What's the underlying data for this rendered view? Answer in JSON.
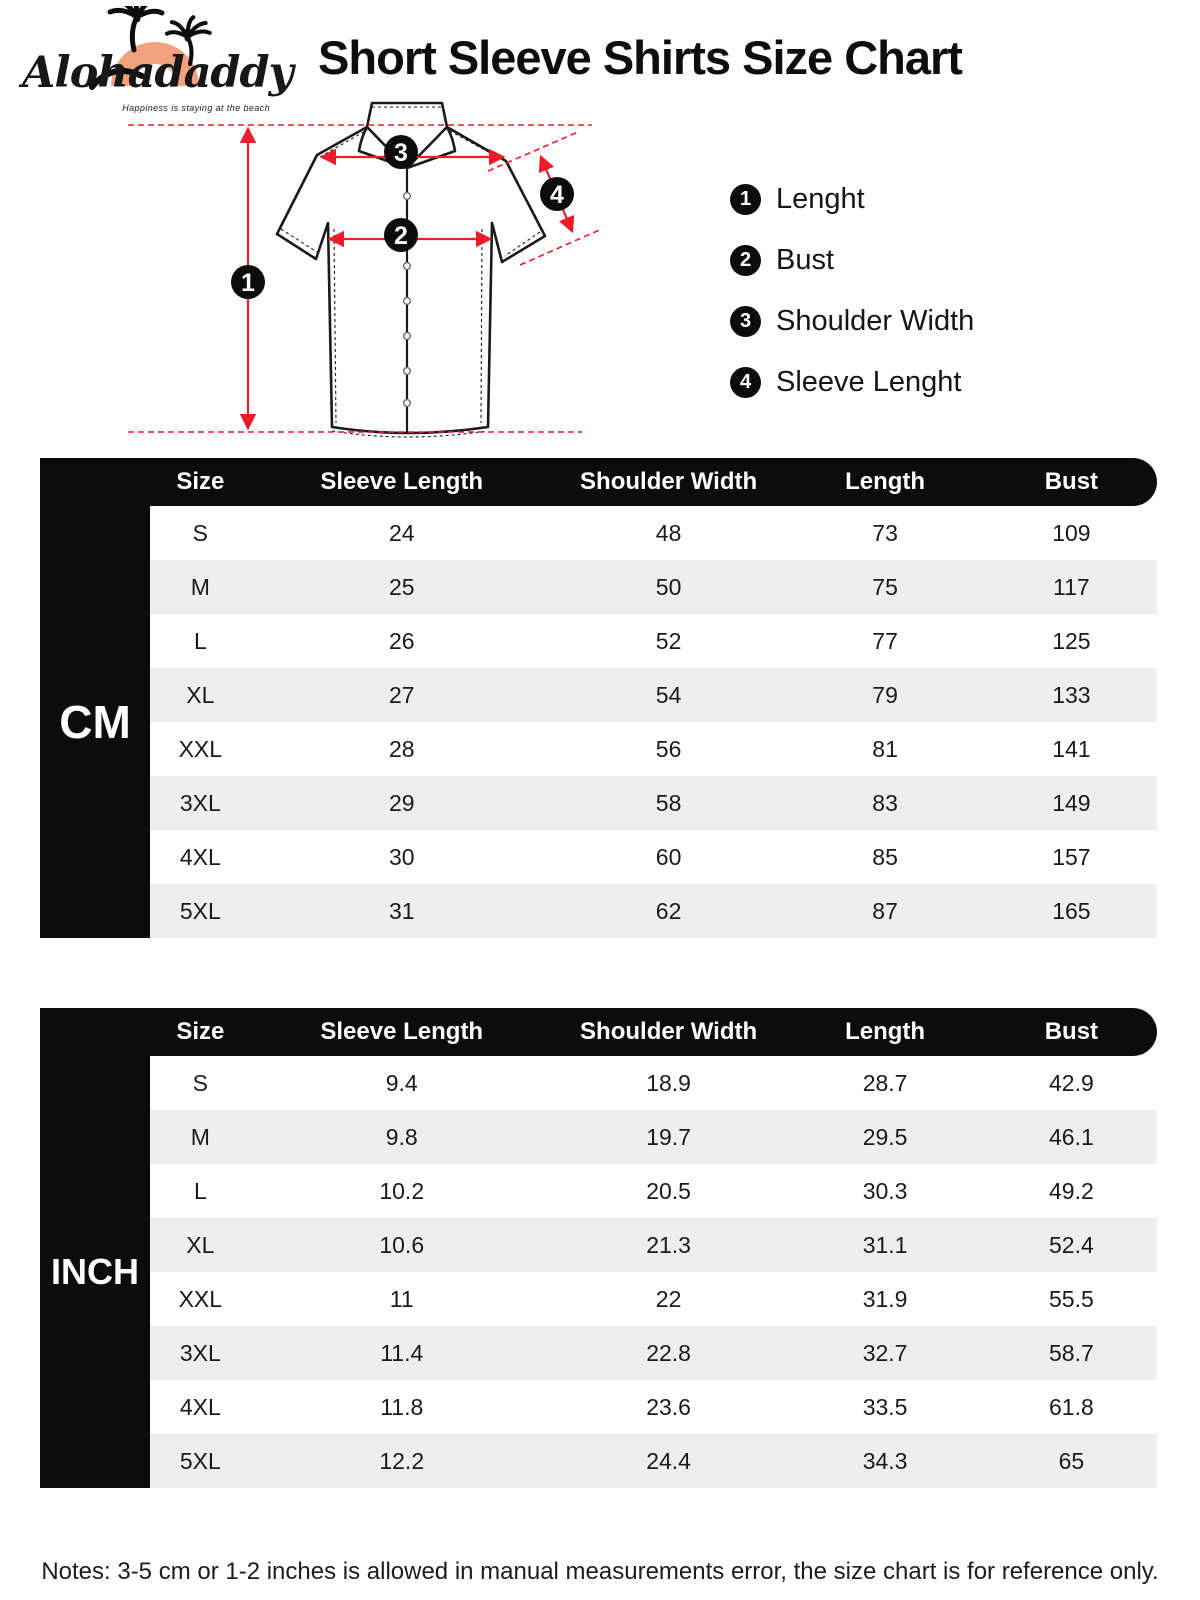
{
  "brand": {
    "name": "Alohadaddy",
    "tagline": "Happiness is staying at the beach",
    "sun_color": "#F2A37E"
  },
  "title": "Short Sleeve Shirts Size Chart",
  "diagram": {
    "arrow_color": "#ED1C28",
    "labels": [
      {
        "num": "1",
        "text": "Lenght"
      },
      {
        "num": "2",
        "text": "Bust"
      },
      {
        "num": "3",
        "text": "Shoulder Width"
      },
      {
        "num": "4",
        "text": "Sleeve Lenght"
      }
    ]
  },
  "tables": [
    {
      "unit": "CM",
      "columns": [
        "Size",
        "Sleeve Length",
        "Shoulder Width",
        "Length",
        "Bust"
      ],
      "rows": [
        [
          "S",
          "24",
          "48",
          "73",
          "109"
        ],
        [
          "M",
          "25",
          "50",
          "75",
          "117"
        ],
        [
          "L",
          "26",
          "52",
          "77",
          "125"
        ],
        [
          "XL",
          "27",
          "54",
          "79",
          "133"
        ],
        [
          "XXL",
          "28",
          "56",
          "81",
          "141"
        ],
        [
          "3XL",
          "29",
          "58",
          "83",
          "149"
        ],
        [
          "4XL",
          "30",
          "60",
          "85",
          "157"
        ],
        [
          "5XL",
          "31",
          "62",
          "87",
          "165"
        ]
      ]
    },
    {
      "unit": "INCH",
      "columns": [
        "Size",
        "Sleeve Length",
        "Shoulder Width",
        "Length",
        "Bust"
      ],
      "rows": [
        [
          "S",
          "9.4",
          "18.9",
          "28.7",
          "42.9"
        ],
        [
          "M",
          "9.8",
          "19.7",
          "29.5",
          "46.1"
        ],
        [
          "L",
          "10.2",
          "20.5",
          "30.3",
          "49.2"
        ],
        [
          "XL",
          "10.6",
          "21.3",
          "31.1",
          "52.4"
        ],
        [
          "XXL",
          "11",
          "22",
          "31.9",
          "55.5"
        ],
        [
          "3XL",
          "11.4",
          "22.8",
          "32.7",
          "58.7"
        ],
        [
          "4XL",
          "11.8",
          "23.6",
          "33.5",
          "61.8"
        ],
        [
          "5XL",
          "12.2",
          "24.4",
          "34.3",
          "65"
        ]
      ]
    }
  ],
  "notes": "Notes: 3-5 cm or 1-2 inches is allowed in manual measurements error, the size chart is for reference only."
}
